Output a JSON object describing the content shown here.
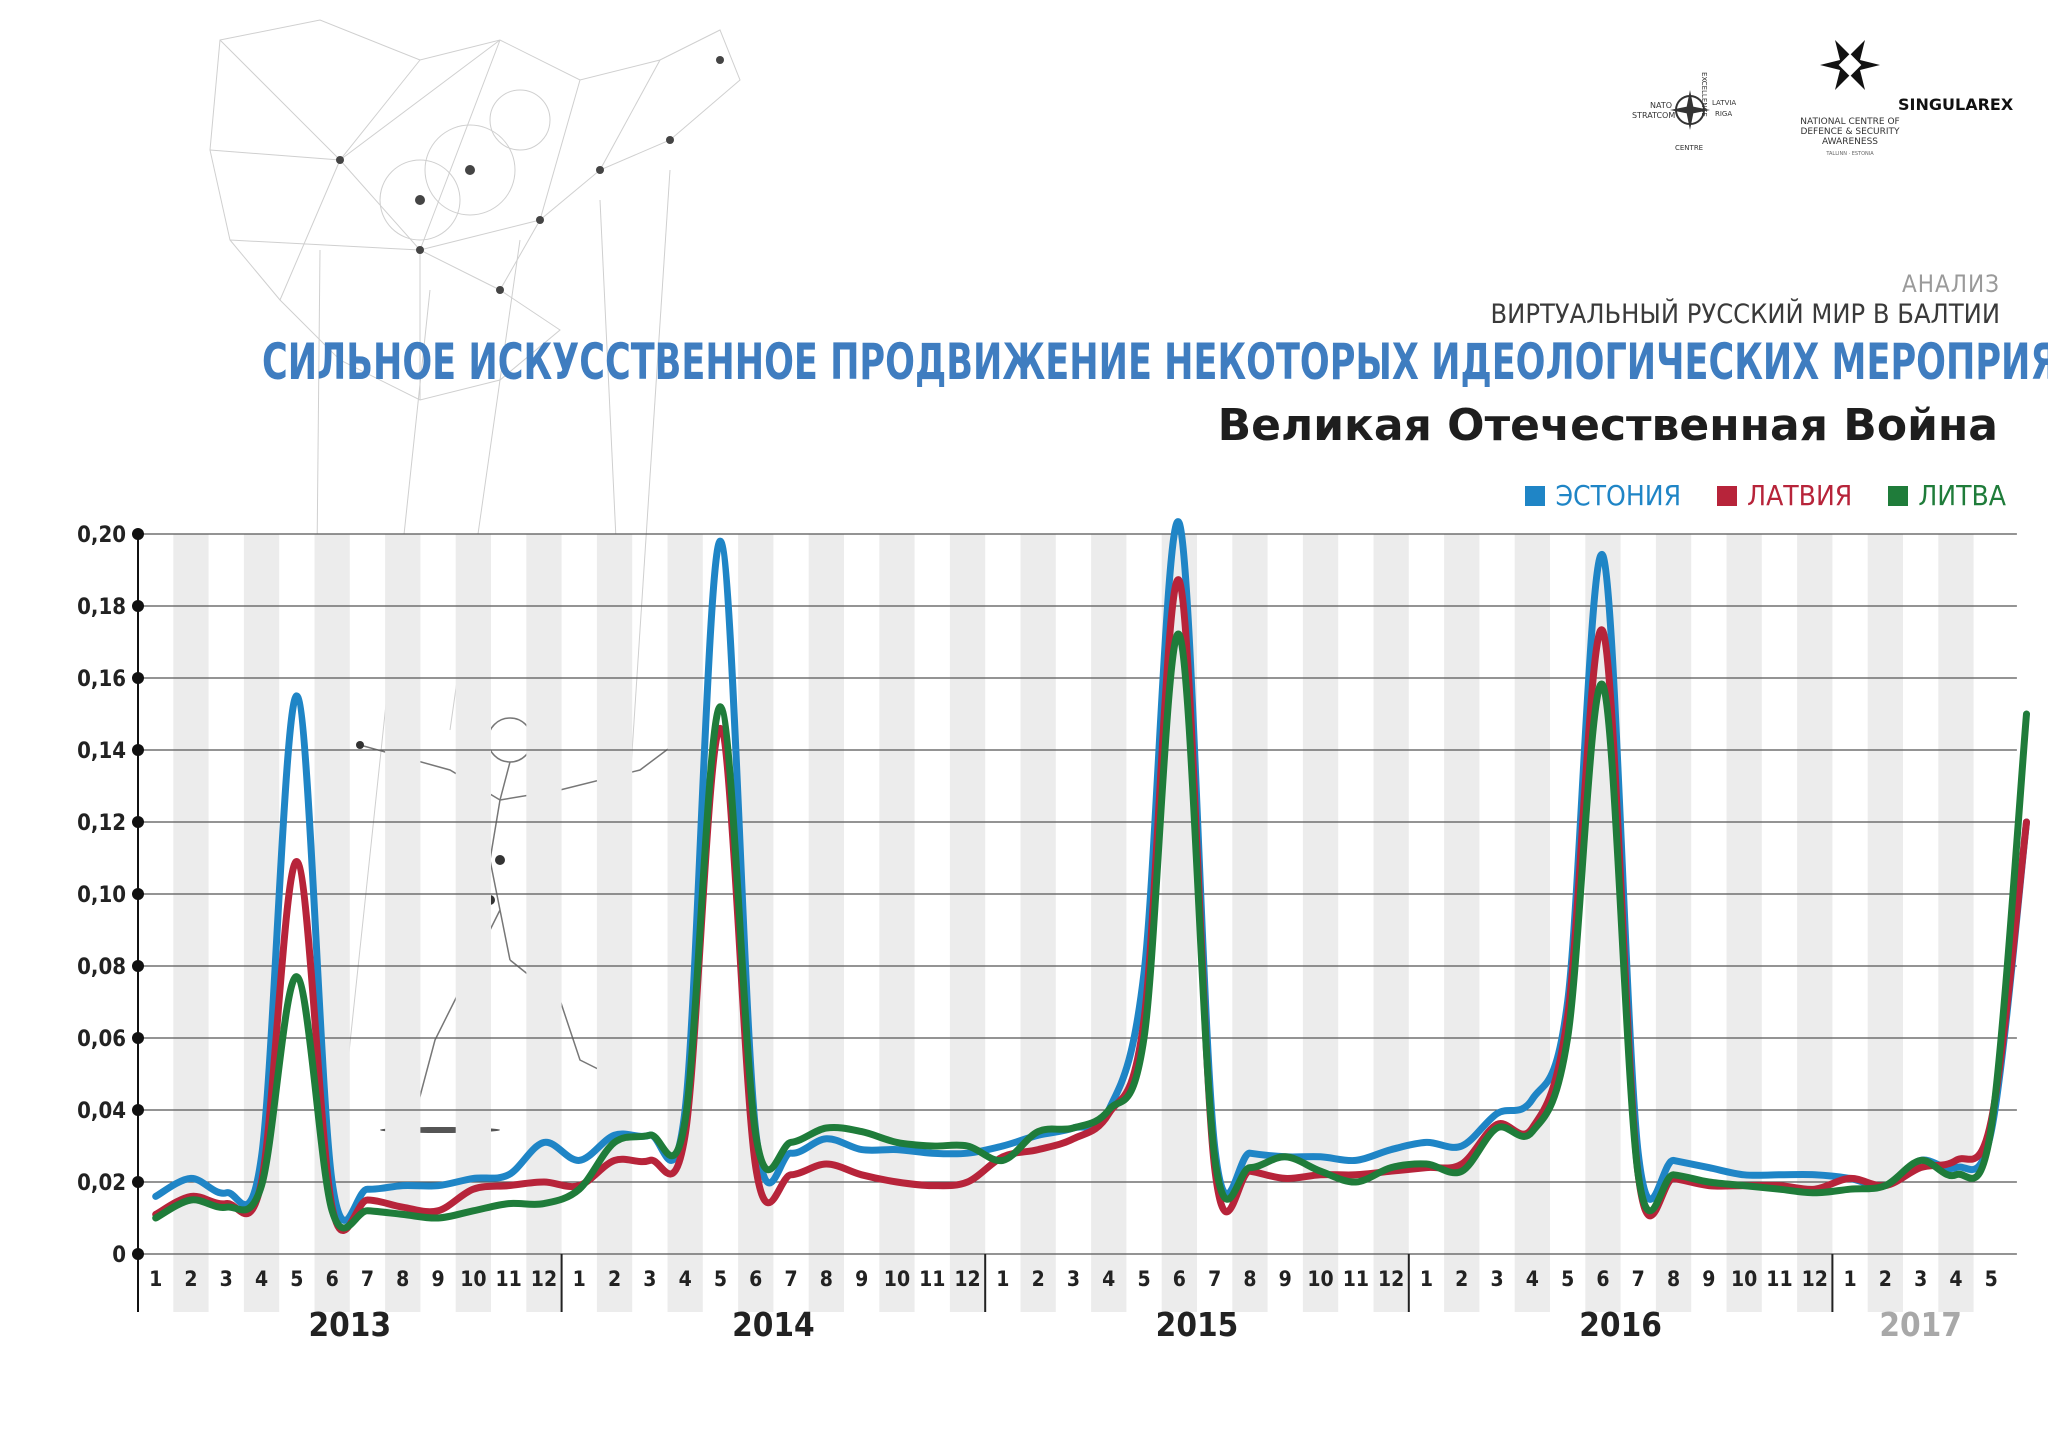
{
  "header": {
    "kicker": "АНАЛИЗ",
    "series_name": "ВИРТУАЛЬНЫЙ РУССКИЙ МИР В БАЛТИИ",
    "title": "СИЛЬНОЕ ИСКУССТВЕННОЕ ПРОДВИЖЕНИЕ НЕКОТОРЫХ ИДЕОЛОГИЧЕСКИХ МЕРОПРИЯТИЙ",
    "subtitle": "Великая Отечественная Война"
  },
  "logos": {
    "singularex": "SINGULAREX",
    "ncdsa": [
      "NATIONAL CENTRE OF",
      "DEFENCE & SECURITY",
      "AWARENESS"
    ],
    "ncdsa_small": "TALLINN · ESTONIA",
    "stratcom": [
      "NATO",
      "STRATCOM",
      "CENTRE",
      "EXCELLENCE",
      "LATVIA",
      "RIGA"
    ]
  },
  "colors": {
    "estonia": "#1f85c6",
    "latvia": "#b7243a",
    "lithuania": "#1f7c3a",
    "title": "#3f7dc0",
    "year_2017": "#a8a8a8"
  },
  "chart_data": {
    "type": "line",
    "title": "СИЛЬНОЕ ИСКУССТВЕННОЕ ПРОДВИЖЕНИЕ НЕКОТОРЫХ ИДЕОЛОГИЧЕСКИХ МЕРОПРИЯТИЙ",
    "subtitle": "Великая Отечественная Война",
    "ylim": [
      0,
      0.2
    ],
    "y_ticks": [
      "0",
      "0,02",
      "0,04",
      "0,06",
      "0,08",
      "0,10",
      "0,12",
      "0,14",
      "0,16",
      "0,18",
      "0,20"
    ],
    "years": [
      "2013",
      "2014",
      "2015",
      "2016",
      "2017"
    ],
    "month_labels": [
      "1",
      "2",
      "3",
      "4",
      "5",
      "6",
      "7",
      "8",
      "9",
      "10",
      "11",
      "12",
      "1",
      "2",
      "3",
      "4",
      "5",
      "6",
      "7",
      "8",
      "9",
      "10",
      "11",
      "12",
      "1",
      "2",
      "3",
      "4",
      "5",
      "6",
      "7",
      "8",
      "9",
      "10",
      "11",
      "12",
      "1",
      "2",
      "3",
      "4",
      "5",
      "6",
      "7",
      "8",
      "9",
      "10",
      "11",
      "12",
      "1",
      "2",
      "3",
      "4",
      "5"
    ],
    "grid": true,
    "legend_position": "top-right",
    "series": [
      {
        "name": "ЭСТОНИЯ",
        "color": "#1f85c6",
        "points": [
          [
            0.5,
            0.016
          ],
          [
            1.5,
            0.021
          ],
          [
            2.5,
            0.017
          ],
          [
            3.5,
            0.027
          ],
          [
            4.5,
            0.155
          ],
          [
            5.5,
            0.02
          ],
          [
            6.5,
            0.018
          ],
          [
            7.5,
            0.019
          ],
          [
            8.5,
            0.019
          ],
          [
            9.5,
            0.021
          ],
          [
            10.5,
            0.022
          ],
          [
            11.5,
            0.031
          ],
          [
            12.5,
            0.026
          ],
          [
            13.5,
            0.033
          ],
          [
            14.5,
            0.033
          ],
          [
            15.5,
            0.04
          ],
          [
            16.5,
            0.198
          ],
          [
            17.5,
            0.034
          ],
          [
            18.5,
            0.028
          ],
          [
            19.5,
            0.032
          ],
          [
            20.5,
            0.029
          ],
          [
            21.5,
            0.029
          ],
          [
            22.5,
            0.028
          ],
          [
            23.5,
            0.028
          ],
          [
            24.5,
            0.03
          ],
          [
            25.5,
            0.033
          ],
          [
            26.5,
            0.035
          ],
          [
            27.5,
            0.04
          ],
          [
            28.5,
            0.078
          ],
          [
            29.5,
            0.203
          ],
          [
            30.5,
            0.03
          ],
          [
            31.5,
            0.028
          ],
          [
            32.5,
            0.027
          ],
          [
            33.5,
            0.027
          ],
          [
            34.5,
            0.026
          ],
          [
            35.5,
            0.029
          ],
          [
            36.5,
            0.031
          ],
          [
            37.5,
            0.03
          ],
          [
            38.5,
            0.039
          ],
          [
            39.5,
            0.043
          ],
          [
            40.5,
            0.07
          ],
          [
            41.5,
            0.194
          ],
          [
            42.5,
            0.028
          ],
          [
            43.5,
            0.026
          ],
          [
            44.5,
            0.024
          ],
          [
            45.5,
            0.022
          ],
          [
            46.5,
            0.022
          ],
          [
            47.5,
            0.022
          ],
          [
            48.5,
            0.021
          ],
          [
            49.5,
            0.019
          ],
          [
            50.5,
            0.026
          ],
          [
            51.5,
            0.024
          ],
          [
            52.5,
            0.034
          ],
          [
            53.5,
            0.12
          ]
        ]
      },
      {
        "name": "ЛАТВИЯ",
        "color": "#b7243a",
        "points": [
          [
            0.5,
            0.011
          ],
          [
            1.5,
            0.016
          ],
          [
            2.5,
            0.014
          ],
          [
            3.5,
            0.02
          ],
          [
            4.5,
            0.109
          ],
          [
            5.5,
            0.013
          ],
          [
            6.5,
            0.015
          ],
          [
            7.5,
            0.013
          ],
          [
            8.5,
            0.012
          ],
          [
            9.5,
            0.018
          ],
          [
            10.5,
            0.019
          ],
          [
            11.5,
            0.02
          ],
          [
            12.5,
            0.019
          ],
          [
            13.5,
            0.026
          ],
          [
            14.5,
            0.026
          ],
          [
            15.5,
            0.033
          ],
          [
            16.5,
            0.146
          ],
          [
            17.5,
            0.024
          ],
          [
            18.5,
            0.022
          ],
          [
            19.5,
            0.025
          ],
          [
            20.5,
            0.022
          ],
          [
            21.5,
            0.02
          ],
          [
            22.5,
            0.019
          ],
          [
            23.5,
            0.02
          ],
          [
            24.5,
            0.027
          ],
          [
            25.5,
            0.029
          ],
          [
            26.5,
            0.032
          ],
          [
            27.5,
            0.039
          ],
          [
            28.5,
            0.065
          ],
          [
            29.5,
            0.187
          ],
          [
            30.5,
            0.024
          ],
          [
            31.5,
            0.023
          ],
          [
            32.5,
            0.021
          ],
          [
            33.5,
            0.022
          ],
          [
            34.5,
            0.022
          ],
          [
            35.5,
            0.023
          ],
          [
            36.5,
            0.024
          ],
          [
            37.5,
            0.025
          ],
          [
            38.5,
            0.036
          ],
          [
            39.5,
            0.035
          ],
          [
            40.5,
            0.066
          ],
          [
            41.5,
            0.173
          ],
          [
            42.5,
            0.022
          ],
          [
            43.5,
            0.021
          ],
          [
            44.5,
            0.019
          ],
          [
            45.5,
            0.019
          ],
          [
            46.5,
            0.019
          ],
          [
            47.5,
            0.018
          ],
          [
            48.5,
            0.021
          ],
          [
            49.5,
            0.019
          ],
          [
            50.5,
            0.024
          ],
          [
            51.5,
            0.026
          ],
          [
            52.5,
            0.037
          ],
          [
            53.5,
            0.12
          ]
        ]
      },
      {
        "name": "ЛИТВА",
        "color": "#1f7c3a",
        "points": [
          [
            0.5,
            0.01
          ],
          [
            1.5,
            0.015
          ],
          [
            2.5,
            0.013
          ],
          [
            3.5,
            0.019
          ],
          [
            4.5,
            0.077
          ],
          [
            5.5,
            0.012
          ],
          [
            6.5,
            0.012
          ],
          [
            7.5,
            0.011
          ],
          [
            8.5,
            0.01
          ],
          [
            9.5,
            0.012
          ],
          [
            10.5,
            0.014
          ],
          [
            11.5,
            0.014
          ],
          [
            12.5,
            0.018
          ],
          [
            13.5,
            0.031
          ],
          [
            14.5,
            0.033
          ],
          [
            15.5,
            0.037
          ],
          [
            16.5,
            0.152
          ],
          [
            17.5,
            0.033
          ],
          [
            18.5,
            0.031
          ],
          [
            19.5,
            0.035
          ],
          [
            20.5,
            0.034
          ],
          [
            21.5,
            0.031
          ],
          [
            22.5,
            0.03
          ],
          [
            23.5,
            0.03
          ],
          [
            24.5,
            0.026
          ],
          [
            25.5,
            0.034
          ],
          [
            26.5,
            0.035
          ],
          [
            27.5,
            0.04
          ],
          [
            28.5,
            0.06
          ],
          [
            29.5,
            0.172
          ],
          [
            30.5,
            0.027
          ],
          [
            31.5,
            0.024
          ],
          [
            32.5,
            0.027
          ],
          [
            33.5,
            0.023
          ],
          [
            34.5,
            0.02
          ],
          [
            35.5,
            0.024
          ],
          [
            36.5,
            0.025
          ],
          [
            37.5,
            0.023
          ],
          [
            38.5,
            0.035
          ],
          [
            39.5,
            0.034
          ],
          [
            40.5,
            0.06
          ],
          [
            41.5,
            0.158
          ],
          [
            42.5,
            0.022
          ],
          [
            43.5,
            0.022
          ],
          [
            44.5,
            0.02
          ],
          [
            45.5,
            0.019
          ],
          [
            46.5,
            0.018
          ],
          [
            47.5,
            0.017
          ],
          [
            48.5,
            0.018
          ],
          [
            49.5,
            0.019
          ],
          [
            50.5,
            0.026
          ],
          [
            51.5,
            0.022
          ],
          [
            52.5,
            0.035
          ],
          [
            53.5,
            0.15
          ]
        ]
      }
    ]
  }
}
